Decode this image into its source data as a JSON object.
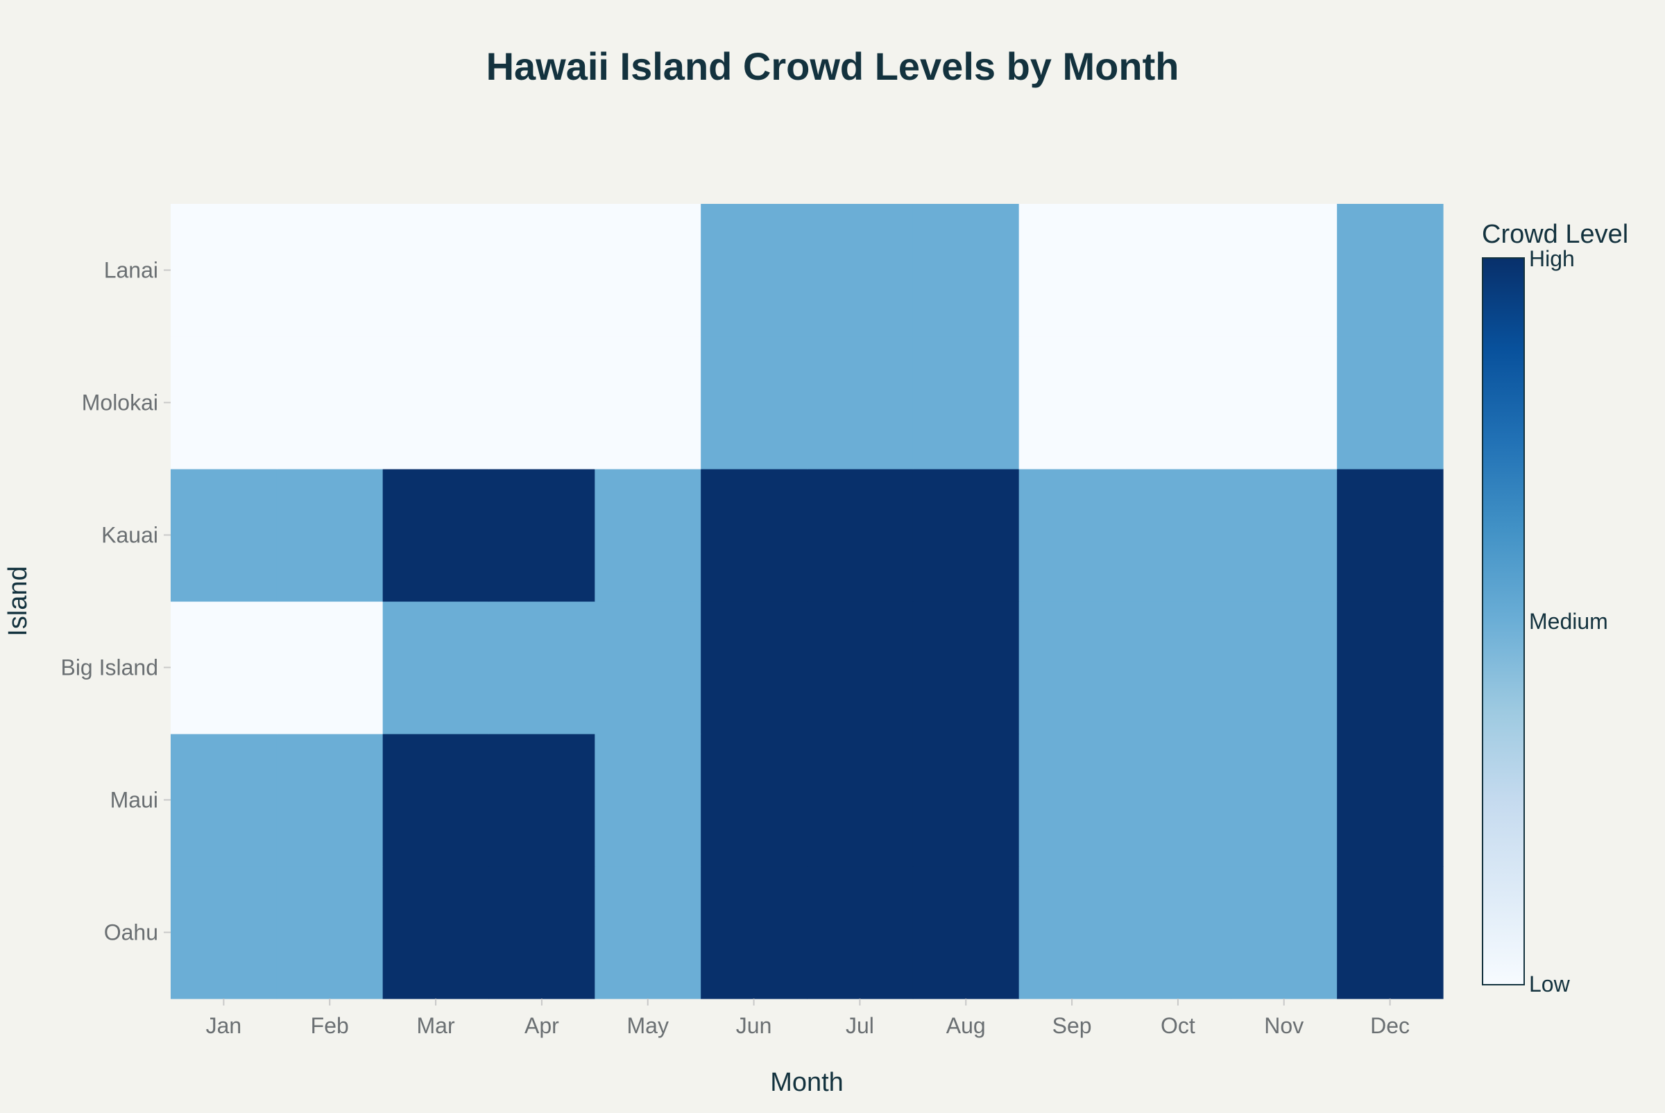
{
  "chart_data": {
    "type": "heatmap",
    "title": "Hawaii Island Crowd Levels by Month",
    "xlabel": "Month",
    "ylabel": "Island",
    "x": [
      "Jan",
      "Feb",
      "Mar",
      "Apr",
      "May",
      "Jun",
      "Jul",
      "Aug",
      "Sep",
      "Oct",
      "Nov",
      "Dec"
    ],
    "y": [
      "Oahu",
      "Maui",
      "Big Island",
      "Kauai",
      "Molokai",
      "Lanai"
    ],
    "z_scale": {
      "Low": 1,
      "Medium": 2,
      "High": 3
    },
    "z": [
      [
        2,
        2,
        3,
        3,
        2,
        3,
        3,
        3,
        2,
        2,
        2,
        3
      ],
      [
        2,
        2,
        3,
        3,
        2,
        3,
        3,
        3,
        2,
        2,
        2,
        3
      ],
      [
        1,
        1,
        2,
        2,
        2,
        3,
        3,
        3,
        2,
        2,
        2,
        3
      ],
      [
        2,
        2,
        3,
        3,
        2,
        3,
        3,
        3,
        2,
        2,
        2,
        3
      ],
      [
        1,
        1,
        1,
        1,
        1,
        2,
        2,
        2,
        1,
        1,
        1,
        2
      ],
      [
        1,
        1,
        1,
        1,
        1,
        2,
        2,
        2,
        1,
        1,
        1,
        2
      ]
    ],
    "colorbar": {
      "title": "Crowd Level",
      "tick_values": [
        3,
        2,
        1
      ],
      "tick_labels": [
        "High",
        "Medium",
        "Low"
      ],
      "colorscale": [
        "#f7fbff",
        "#deebf7",
        "#c6dbef",
        "#9ecae1",
        "#6baed6",
        "#4292c6",
        "#2171b5",
        "#08519c",
        "#08306b"
      ]
    },
    "cell_colors": {
      "1": "#f7fbff",
      "2": "#6baed6",
      "3": "#08306b"
    },
    "grid": false,
    "legend": "right"
  },
  "colors": {
    "background": "#f3f3ee",
    "title": "#13323e",
    "tick_text": "#6a6f72"
  }
}
